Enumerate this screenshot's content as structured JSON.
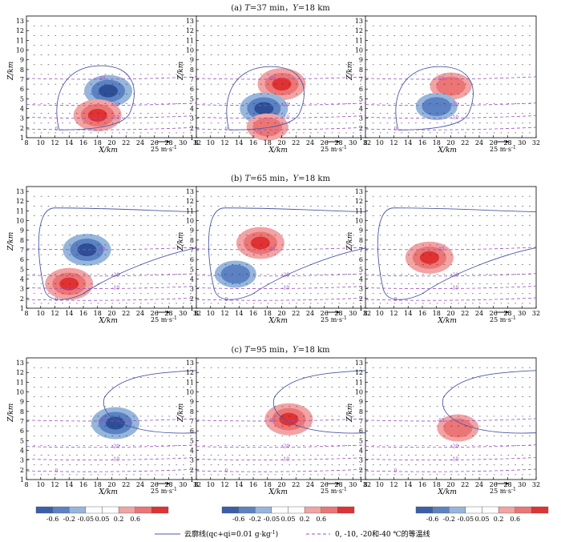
{
  "row_titles": [
    {
      "label": "(a)",
      "t_sym": "T",
      "t_text": "=37 min，",
      "y_sym": "Y",
      "y_text": "=18 km"
    },
    {
      "label": "(b)",
      "t_sym": "T",
      "t_text": "=65 min，",
      "y_sym": "Y",
      "y_text": "=18 km"
    },
    {
      "label": "(c)",
      "t_sym": "T",
      "t_text": "=95 min，",
      "y_sym": "Y",
      "y_text": "=18 km"
    }
  ],
  "axes": {
    "xlabel": "X/km",
    "ylabel": "Z/km",
    "xticks": [
      "8",
      "10",
      "12",
      "14",
      "16",
      "18",
      "20",
      "22",
      "24",
      "26",
      "28",
      "30",
      "32"
    ],
    "yticks": [
      "1",
      "2",
      "3",
      "4",
      "5",
      "6",
      "7",
      "8",
      "9",
      "10",
      "11",
      "12",
      "13"
    ],
    "xlim": [
      8,
      32
    ],
    "ylim": [
      1,
      13.5
    ]
  },
  "wind_ref": {
    "label": "25 m·s",
    "exp": "-1"
  },
  "colorbar": {
    "ticks": [
      "-0.6",
      "-0.2",
      "-0.05",
      "0.05",
      "0.2",
      "0.6"
    ],
    "colors": [
      "#3a5ea8",
      "#5b82c2",
      "#96b6dc",
      "#ffffff",
      "#ffffff",
      "#f2a3a4",
      "#ec7575",
      "#e03232"
    ]
  },
  "legend": {
    "cloud_outline": "云廓线(qc+qi=0.01 g·kg",
    "cloud_outline_exp": "-1",
    "cloud_outline_tail": ")",
    "isotherm": "0, -10, -20和-40 ℃的等温线"
  },
  "isotherm_labels": [
    "0",
    "-10",
    "-20",
    "-40"
  ],
  "colors": {
    "cloud_line": "#4b57a6",
    "isotherm": "#9b4fc0",
    "blue_dark": "#2e4f97",
    "red_dark": "#d92626"
  },
  "chart_data": {
    "type": "contour",
    "isotherm_heights_km": {
      "0": 1.9,
      "-10": 3.1,
      "-20": 4.4,
      "-40": 7.1
    },
    "panels": [
      {
        "row": "a",
        "col": 1,
        "cloud_top_km": 8.4,
        "cells": [
          {
            "sign": "negative",
            "x": 19.5,
            "z": 5.8,
            "peak": -0.6
          },
          {
            "sign": "positive",
            "x": 18,
            "z": 3.3,
            "peak": 0.6
          }
        ]
      },
      {
        "row": "a",
        "col": 2,
        "cloud_top_km": 8.3,
        "cells": [
          {
            "sign": "positive",
            "x": 20,
            "z": 6.5,
            "peak": 0.6
          },
          {
            "sign": "negative",
            "x": 17.5,
            "z": 4,
            "peak": -0.6
          },
          {
            "sign": "positive",
            "x": 18,
            "z": 2.1,
            "peak": 0.2
          }
        ]
      },
      {
        "row": "a",
        "col": 3,
        "cloud_top_km": 8.3,
        "cells": [
          {
            "sign": "positive",
            "x": 20,
            "z": 6.3,
            "peak": 0.2
          },
          {
            "sign": "negative",
            "x": 18,
            "z": 4.2,
            "peak": -0.2
          }
        ]
      },
      {
        "row": "b",
        "col": 1,
        "cloud_top_km": 11.3,
        "cells": [
          {
            "sign": "negative",
            "x": 16.5,
            "z": 7,
            "peak": -0.6
          },
          {
            "sign": "positive",
            "x": 14,
            "z": 3.5,
            "peak": 0.6
          }
        ]
      },
      {
        "row": "b",
        "col": 2,
        "cloud_top_km": 11.3,
        "cells": [
          {
            "sign": "positive",
            "x": 17,
            "z": 7.7,
            "peak": 0.6
          },
          {
            "sign": "negative",
            "x": 13.5,
            "z": 4.5,
            "peak": -0.2
          }
        ]
      },
      {
        "row": "b",
        "col": 3,
        "cloud_top_km": 11.3,
        "cells": [
          {
            "sign": "positive",
            "x": 17,
            "z": 6.2,
            "peak": 0.6
          }
        ]
      },
      {
        "row": "c",
        "col": 1,
        "cloud_top_km": 12.2,
        "cells": [
          {
            "sign": "negative",
            "x": 20.5,
            "z": 6.8,
            "peak": -0.6
          }
        ]
      },
      {
        "row": "c",
        "col": 2,
        "cloud_top_km": 12.2,
        "cells": [
          {
            "sign": "positive",
            "x": 21,
            "z": 7.2,
            "peak": 0.6
          }
        ]
      },
      {
        "row": "c",
        "col": 3,
        "cloud_top_km": 12.2,
        "cells": [
          {
            "sign": "positive",
            "x": 21,
            "z": 6.3,
            "peak": 0.2
          }
        ]
      }
    ]
  }
}
